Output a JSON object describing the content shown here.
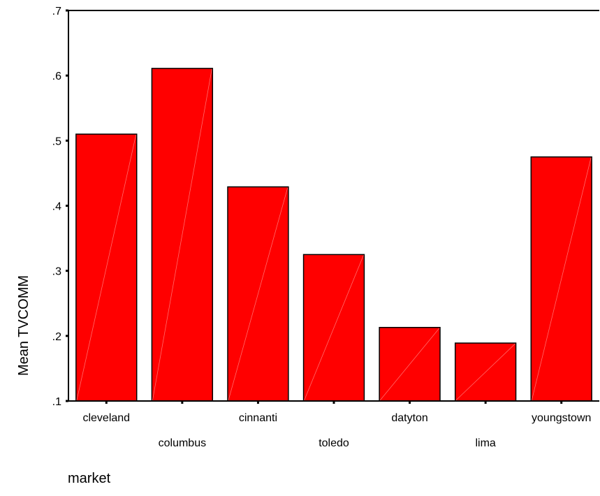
{
  "chart_data": {
    "type": "bar",
    "categories": [
      "cleveland",
      "columbus",
      "cinnanti",
      "toledo",
      "datyton",
      "lima",
      "youngstown"
    ],
    "values": [
      0.51,
      0.611,
      0.429,
      0.325,
      0.213,
      0.189,
      0.475
    ],
    "xlabel": "market",
    "ylabel": "Mean TVCOMM",
    "ylim": [
      0.1,
      0.7
    ],
    "yticks": [
      {
        "value": 0.1,
        "label": ".1"
      },
      {
        "value": 0.2,
        "label": ".2"
      },
      {
        "value": 0.3,
        "label": ".3"
      },
      {
        "value": 0.4,
        "label": ".4"
      },
      {
        "value": 0.5,
        "label": ".5"
      },
      {
        "value": 0.6,
        "label": ".6"
      },
      {
        "value": 0.7,
        "label": ".7"
      }
    ],
    "grid": false,
    "bar_color": "#ff0000",
    "bar_edge_color": "#000000"
  }
}
